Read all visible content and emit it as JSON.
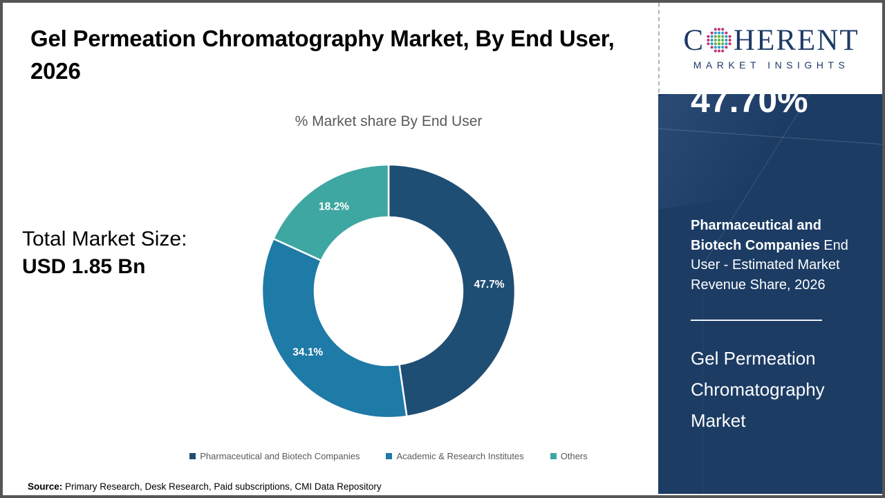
{
  "page": {
    "title": "Gel Permeation Chromatography Market, By End User, 2026",
    "source_label": "Source:",
    "source_text": " Primary Research, Desk Research, Paid subscriptions, CMI Data Repository"
  },
  "total_market": {
    "label": "Total Market Size:",
    "value": "USD 1.85 Bn"
  },
  "chart_data": {
    "type": "pie",
    "subtype": "donut",
    "title": "% Market share By End User",
    "categories": [
      "Pharmaceutical and Biotech Companies",
      "Academic & Research Institutes",
      "Others"
    ],
    "values": [
      47.7,
      34.1,
      18.2
    ],
    "labels": [
      "47.7%",
      "34.1%",
      "18.2%"
    ],
    "colors": [
      "#1f4e74",
      "#1e7aa6",
      "#3fa7a2"
    ],
    "legend_position": "bottom",
    "label_color": "#ffffff"
  },
  "brand": {
    "wordmark_left": "C",
    "wordmark_right": "HERENT",
    "tagline": "MARKET INSIGHTS",
    "wordmark_color": "#1e3a66",
    "globe_colors": [
      "#5fae3f",
      "#2a9bc9",
      "#c42f6d"
    ]
  },
  "sidebar": {
    "bg_color": "#1c3c64",
    "stat_value": "47.70%",
    "stat_highlight": "Pharmaceutical and Biotech Companies",
    "stat_rest": " End User - Estimated Market Revenue Share, 2026",
    "market_name": "Gel Permeation Chromatography Market"
  }
}
